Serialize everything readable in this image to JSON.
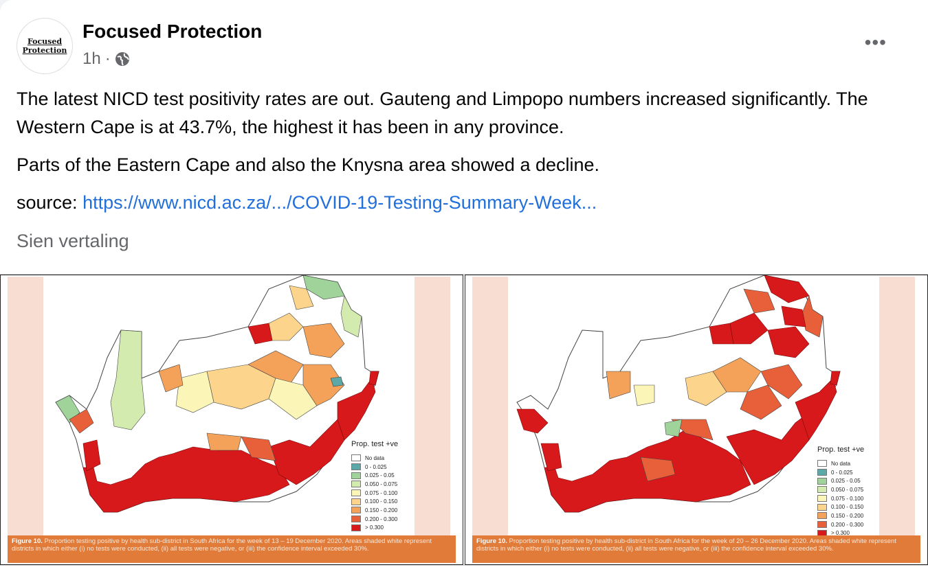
{
  "post": {
    "author": "Focused Protection",
    "avatar_text": [
      "Focused",
      "Protection"
    ],
    "time": "1h",
    "separator": "·",
    "privacy_icon": "globe-icon",
    "more_label": "•••",
    "paragraphs": [
      "The latest NICD test positivity rates are out. Gauteng and Limpopo numbers increased significantly. The Western Cape is at 43.7%, the highest it has been in any province.",
      "Parts of the Eastern Cape and also the Knysna area showed a decline."
    ],
    "source_label": "source:",
    "source_link": "https://www.nicd.ac.za/.../COVID-19-Testing-Summary-Week...",
    "see_translation": "Sien vertaling"
  },
  "legend": {
    "title": "Prop. test +ve",
    "items": [
      {
        "label": "No data",
        "color": "#ffffff"
      },
      {
        "label": "0 - 0.025",
        "color": "#5aa8a8"
      },
      {
        "label": "0.025 - 0.05",
        "color": "#9fd39a"
      },
      {
        "label": "0.050 - 0.075",
        "color": "#d4ebb0"
      },
      {
        "label": "0.075 - 0.100",
        "color": "#fbf5b8"
      },
      {
        "label": "0.100 - 0.150",
        "color": "#fcd48c"
      },
      {
        "label": "0.150 - 0.200",
        "color": "#f4a259"
      },
      {
        "label": "0.200 - 0.300",
        "color": "#e8603a"
      },
      {
        "label": "> 0.300",
        "color": "#d7191c"
      }
    ]
  },
  "figures": [
    {
      "caption_bold": "Figure 10.",
      "caption": "Proportion testing positive by health sub-district in South Africa for the week of 13 – 19 December 2020. Areas shaded white represent districts in which either (i) no tests were conducted, (ii) all tests were negative, or (iii) the confidence interval exceeded 30%."
    },
    {
      "caption_bold": "Figure 10.",
      "caption": "Proportion testing positive by health sub-district in South Africa for the week of 20 – 26 December 2020. Areas shaded white represent districts in which either (i) no tests were conducted, (ii) all tests were negative, or (iii) the confidence interval exceeded 30%."
    }
  ]
}
